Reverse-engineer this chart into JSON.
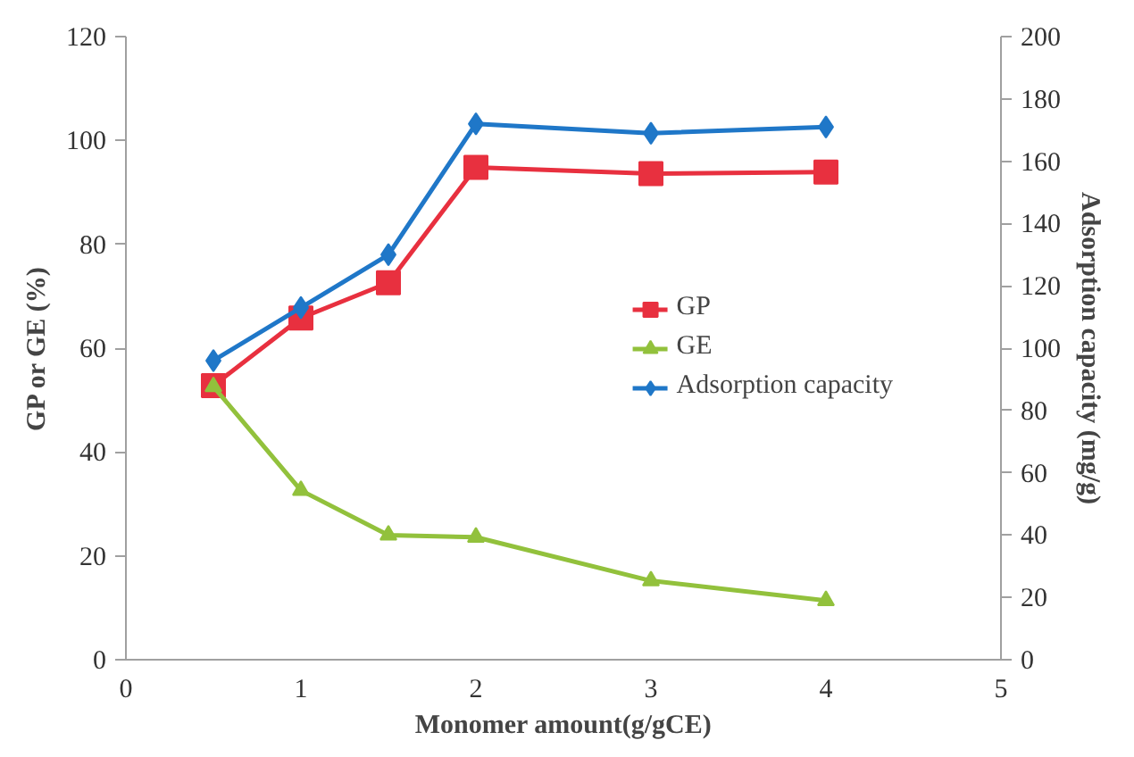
{
  "chart_data": {
    "type": "line",
    "xlabel": "Monomer amount(g/gCE)",
    "ylabel": "GP or GE (%)",
    "y2label": "Adsorption capacity (mg/g)",
    "x": [
      0.5,
      1,
      1.5,
      2,
      3,
      4
    ],
    "series": [
      {
        "name": "GP",
        "color": "#e8303f",
        "marker": "square",
        "values": [
          52.8,
          65.8,
          72.6,
          94.8,
          93.6,
          93.9
        ]
      },
      {
        "name": "GE",
        "color": "#92c13c",
        "marker": "triangle",
        "values": [
          52.6,
          32.6,
          24,
          23.6,
          15.2,
          11.4
        ]
      },
      {
        "name": "Adsorption capacity",
        "color": "#1f77c8",
        "marker": "diamond",
        "axis": "y2",
        "values": [
          96,
          113,
          130,
          172,
          169,
          171
        ]
      }
    ],
    "xlim": [
      0,
      5
    ],
    "xticks": [
      0,
      1,
      2,
      3,
      4,
      5
    ],
    "ylim": [
      0,
      120
    ],
    "yticks": [
      0,
      20,
      40,
      60,
      80,
      100,
      120
    ],
    "y2lim": [
      0,
      200
    ],
    "y2ticks": [
      0,
      20,
      40,
      60,
      80,
      100,
      120,
      140,
      160,
      180,
      200
    ],
    "grid": false,
    "legend": "right",
    "line_style": "solid"
  }
}
